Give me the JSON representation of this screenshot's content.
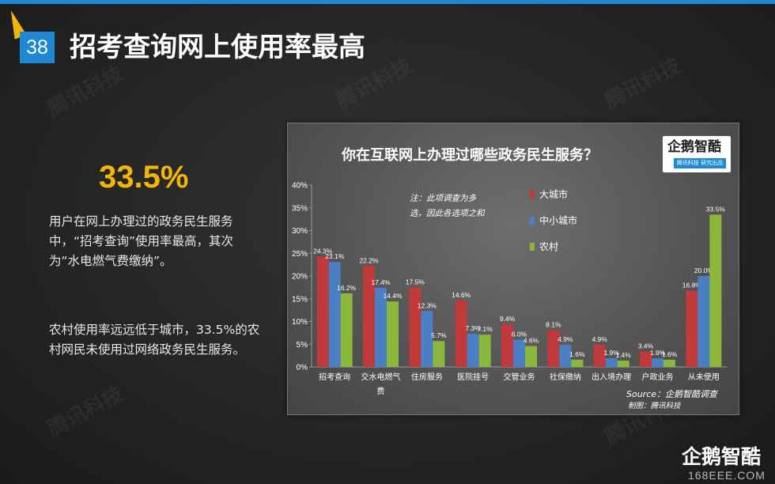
{
  "slide": {
    "page_number": "38",
    "title": "招考查询网上使用率最高",
    "stat": "33.5%",
    "paragraph1": "用户在网上办理过的政务民生服务中，“招考查询”使用率最高，其次为“水电燃气费缴纳”。",
    "paragraph2": "农村使用率远远低于城市，33.5%的农村网民未使用过网络政务民生服务。",
    "watermark": "腾讯科技",
    "brand": "企鹅智酷",
    "site": "168EEE.COM"
  },
  "panel": {
    "logo_text": "企鹅智酷",
    "logo_sub": "腾讯科技 研究出品",
    "note": "注：此项调查为多选，因此各选项之和",
    "source": "Source：企鹅智酷调查",
    "maker": "制图：腾讯科技"
  },
  "colors": {
    "accent": "#1e88d4",
    "highlight": "#f2b705"
  },
  "chart_data": {
    "type": "bar",
    "title": "你在互联网上办理过哪些政务民生服务？",
    "categories": [
      "招考查询",
      "交水电燃气费",
      "住房服务",
      "医院挂号",
      "交管业务",
      "社保缴纳",
      "出入境办理",
      "户政业务",
      "从未使用"
    ],
    "series": [
      {
        "name": "大城市",
        "color": "#c0393b",
        "values": [
          24.3,
          22.2,
          17.5,
          14.6,
          9.4,
          8.1,
          4.9,
          3.4,
          16.8
        ]
      },
      {
        "name": "中小城市",
        "color": "#4a7fc4",
        "values": [
          23.1,
          17.4,
          12.3,
          7.3,
          6.0,
          4.9,
          1.9,
          1.9,
          20.0
        ]
      },
      {
        "name": "农村",
        "color": "#8bb83c",
        "values": [
          16.2,
          14.4,
          5.7,
          7.1,
          4.6,
          1.6,
          1.4,
          1.6,
          33.5
        ]
      }
    ],
    "y_ticks": [
      "0%",
      "5%",
      "10%",
      "15%",
      "20%",
      "25%",
      "30%",
      "35%",
      "40%"
    ],
    "ylim": [
      0,
      40
    ],
    "legend_position": "top-center",
    "grid": false
  }
}
